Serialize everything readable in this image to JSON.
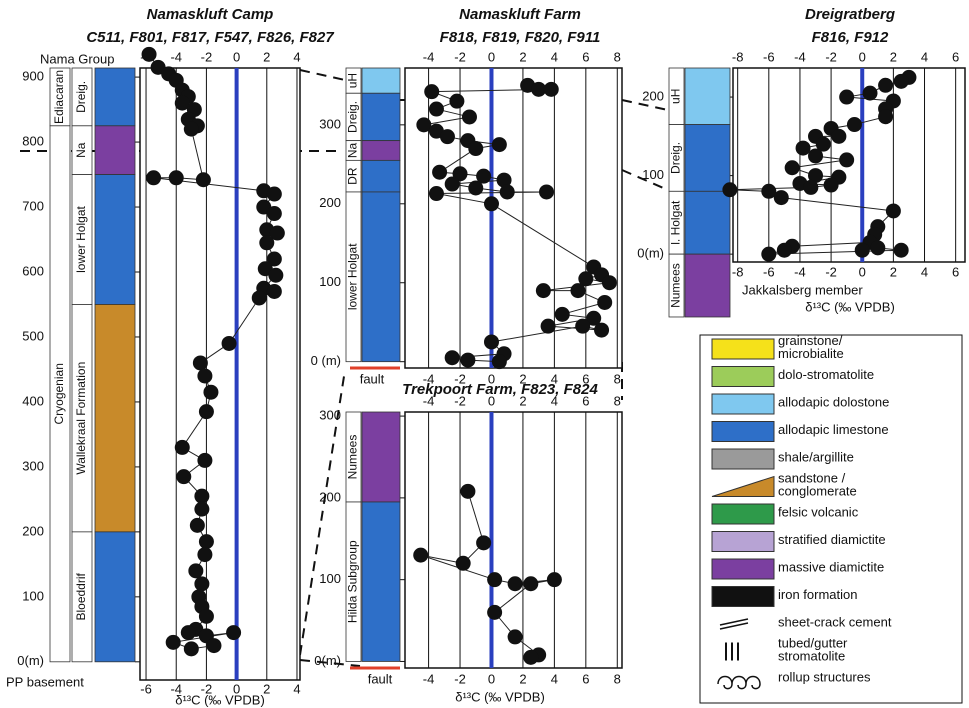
{
  "chart_data": [
    {
      "type": "scatter",
      "title": "Namaskluft Camp",
      "subtitle": "C511, F801, F817, F547, F826, F827",
      "xlabel": "δ¹³C (‰ VPDB)",
      "connected": true,
      "grid": true,
      "zero_line": "#2a3fbf",
      "color": "#111111",
      "xlim": [
        -6.4,
        4.2
      ],
      "xticks": [
        -6,
        -4,
        -2,
        0,
        2,
        4
      ],
      "ylim": [
        -28,
        914
      ],
      "yticks": [
        {
          "value": 0,
          "label": "0(m)"
        },
        100,
        200,
        300,
        400,
        500,
        600,
        700,
        800,
        900
      ],
      "x": [
        -5.8,
        -5.2,
        -4.5,
        -4.0,
        -3.6,
        -3.2,
        -3.6,
        -2.8,
        -3.2,
        -2.6,
        -3.0,
        -2.2,
        -4.0,
        -5.5,
        1.8,
        2.5,
        1.8,
        2.5,
        2.0,
        2.7,
        2.0,
        2.5,
        1.9,
        2.6,
        1.8,
        2.5,
        1.5,
        -0.5,
        -2.4,
        -2.1,
        -1.7,
        -2.0,
        -3.6,
        -2.1,
        -3.5,
        -2.3,
        -2.3,
        -2.6,
        -2.0,
        -2.1,
        -2.7,
        -2.3,
        -2.5,
        -2.3,
        -2.0,
        -2.7,
        -3.2,
        -2.0,
        -0.2,
        -4.2,
        -3.0,
        -1.5
      ],
      "values": [
        935,
        915,
        905,
        895,
        880,
        870,
        860,
        850,
        835,
        825,
        820,
        742,
        745,
        745,
        725,
        720,
        700,
        690,
        665,
        660,
        645,
        620,
        605,
        595,
        575,
        570,
        560,
        490,
        460,
        440,
        415,
        385,
        330,
        310,
        285,
        255,
        235,
        210,
        185,
        165,
        140,
        120,
        100,
        85,
        70,
        50,
        45,
        40,
        45,
        30,
        20,
        25
      ],
      "periods": [
        {
          "label": "Ediacaran",
          "from": 825,
          "to": 914
        },
        {
          "label": "Cryogenian",
          "from": 0,
          "to": 825
        }
      ],
      "units": [
        {
          "label": "Dreig.",
          "from": 825,
          "to": 914,
          "color": "#2e6fc8"
        },
        {
          "label": "Na",
          "from": 750,
          "to": 825,
          "color": "#7b3fa0"
        },
        {
          "label": "lower Holgat",
          "from": 550,
          "to": 750,
          "color": "#2e6fc8"
        },
        {
          "label": "Wallekraal Formation",
          "from": 200,
          "to": 550,
          "color": "#c88a2a"
        },
        {
          "label": "Bloeddrif",
          "from": 0,
          "to": 200,
          "color": "#2e6fc8"
        }
      ],
      "annotations": [
        "Nama Group",
        "PP basement"
      ]
    },
    {
      "type": "scatter",
      "title": "Namaskluft Farm",
      "subtitle": "F818, F819, F820, F911",
      "connected": true,
      "grid": true,
      "zero_line": "#2a3fbf",
      "color": "#111111",
      "xlim": [
        -5.5,
        8.3
      ],
      "xticks": [
        -4,
        -2,
        0,
        2,
        4,
        6,
        8
      ],
      "ylim": [
        -8,
        372
      ],
      "yticks": [
        {
          "value": 0,
          "label": "0 (m)"
        },
        100,
        200,
        300
      ],
      "x": [
        2.3,
        3.0,
        3.8,
        -3.8,
        -2.2,
        -3.5,
        -1.4,
        -4.3,
        -3.5,
        -2.8,
        -1.5,
        0.5,
        -1.0,
        -3.3,
        -2.0,
        -0.5,
        0.8,
        -2.5,
        -1.0,
        1.0,
        3.5,
        -3.5,
        0.0,
        6.5,
        7.0,
        6.0,
        7.5,
        3.3,
        5.5,
        7.2,
        4.5,
        6.5,
        3.6,
        7.0,
        5.8,
        0.0,
        0.8,
        -2.5,
        -1.5,
        0.5
      ],
      "values": [
        350,
        345,
        345,
        342,
        330,
        320,
        310,
        300,
        292,
        285,
        280,
        275,
        270,
        240,
        238,
        235,
        230,
        225,
        220,
        215,
        215,
        213,
        200,
        120,
        110,
        105,
        100,
        90,
        90,
        75,
        60,
        55,
        45,
        40,
        45,
        25,
        10,
        5,
        2,
        0
      ],
      "units": [
        {
          "label": "uH",
          "from": 340,
          "to": 372,
          "color": "#7fc8ef"
        },
        {
          "label": "Dreig.",
          "from": 280,
          "to": 340,
          "color": "#2e6fc8"
        },
        {
          "label": "Na",
          "from": 255,
          "to": 280,
          "color": "#7b3fa0"
        },
        {
          "label": "DR",
          "from": 215,
          "to": 255,
          "color": "#2e6fc8"
        },
        {
          "label": "lower Holgat",
          "from": 0,
          "to": 215,
          "color": "#2e6fc8"
        }
      ],
      "annotations": [
        "fault"
      ]
    },
    {
      "type": "scatter",
      "title": "Dreigratberg",
      "subtitle": "F816, F912",
      "xlabel": "δ¹³C (‰ VPDB)",
      "connected": true,
      "grid": true,
      "zero_line": "#2a3fbf",
      "color": "#111111",
      "xlim": [
        -8.3,
        6.6
      ],
      "xticks": [
        -8,
        -6,
        -4,
        -2,
        0,
        2,
        4,
        6
      ],
      "ylim": [
        -10,
        237
      ],
      "yticks": [
        {
          "value": 0,
          "label": "0(m)"
        },
        100,
        200
      ],
      "x": [
        3.0,
        2.5,
        1.5,
        0.5,
        -1.0,
        2.0,
        1.5,
        1.5,
        -0.5,
        -2.0,
        -1.5,
        -3.0,
        -2.5,
        -3.8,
        -3.0,
        -1.0,
        -4.5,
        -3.0,
        -1.5,
        -4.0,
        -2.0,
        -3.3,
        -8.5,
        -6.0,
        -5.2,
        2.0,
        1.0,
        0.8,
        0.5,
        -4.5,
        -5.0,
        -6.0,
        2.5,
        1.0,
        0.0
      ],
      "values": [
        225,
        220,
        215,
        205,
        200,
        195,
        185,
        175,
        165,
        160,
        150,
        150,
        140,
        135,
        125,
        120,
        110,
        100,
        98,
        90,
        88,
        85,
        82,
        80,
        72,
        55,
        35,
        25,
        15,
        10,
        5,
        0,
        5,
        8,
        5
      ],
      "units": [
        {
          "label": "uH",
          "from": 165,
          "to": 237,
          "color": "#7fc8ef"
        },
        {
          "label": "Dreig.",
          "from": 80,
          "to": 165,
          "color": "#2e6fc8"
        },
        {
          "label": "l. Holgat",
          "from": 0,
          "to": 80,
          "color": "#2e6fc8"
        },
        {
          "label": "Numees",
          "from": -80,
          "to": 0,
          "color": "#7b3fa0"
        }
      ],
      "annotations": [
        "Jakkalsberg member"
      ]
    },
    {
      "type": "scatter",
      "title": "Trekpoort Farm, F823, F824",
      "xlabel": "δ¹³C (‰ VPDB)",
      "connected": true,
      "grid": true,
      "zero_line": "#2a3fbf",
      "color": "#111111",
      "xlim": [
        -5.5,
        8.3
      ],
      "xticks": [
        -4,
        -2,
        0,
        2,
        4,
        6,
        8
      ],
      "ylim": [
        -8,
        305
      ],
      "yticks": [
        {
          "value": 0,
          "label": "0(m)"
        },
        100,
        200,
        300
      ],
      "x": [
        -1.5,
        -0.5,
        -1.8,
        -4.5,
        0.2,
        1.5,
        4.0,
        2.5,
        0.2,
        1.5,
        3.0,
        2.5
      ],
      "values": [
        208,
        145,
        120,
        130,
        100,
        95,
        100,
        95,
        60,
        30,
        8,
        5
      ],
      "units": [
        {
          "label": "Numees",
          "from": 195,
          "to": 305,
          "color": "#7b3fa0"
        },
        {
          "label": "Hilda Subgroup",
          "from": 0,
          "to": 195,
          "color": "#2e6fc8"
        }
      ],
      "annotations": [
        "fault"
      ]
    }
  ],
  "legend": [
    {
      "lines": [
        "grainstone/",
        "microbialite"
      ],
      "color": "#f5e11a",
      "symbol": "box"
    },
    {
      "lines": [
        "dolo-stromatolite"
      ],
      "color": "#9ccc5a",
      "symbol": "box"
    },
    {
      "lines": [
        "allodapic dolostone"
      ],
      "color": "#7fc8ef",
      "symbol": "box"
    },
    {
      "lines": [
        "allodapic limestone"
      ],
      "color": "#2e6fc8",
      "symbol": "box"
    },
    {
      "lines": [
        "shale/argillite"
      ],
      "color": "#9a9a9a",
      "symbol": "box"
    },
    {
      "lines": [
        "sandstone /",
        "conglomerate"
      ],
      "color": "#c88a2a",
      "symbol": "wedge"
    },
    {
      "lines": [
        "felsic volcanic"
      ],
      "color": "#2e9a4a",
      "symbol": "box"
    },
    {
      "lines": [
        "stratified diamictite"
      ],
      "color": "#b7a3d4",
      "symbol": "box"
    },
    {
      "lines": [
        "massive diamictite"
      ],
      "color": "#7b3fa0",
      "symbol": "box"
    },
    {
      "lines": [
        "iron formation"
      ],
      "color": "#111111",
      "symbol": "box"
    },
    {
      "lines": [
        "sheet-crack cement"
      ],
      "color": "#111111",
      "symbol": "crack"
    },
    {
      "lines": [
        "tubed/gutter",
        "stromatolite"
      ],
      "color": "#111111",
      "symbol": "tube"
    },
    {
      "lines": [
        "rollup structures"
      ],
      "color": "#111111",
      "symbol": "rollup"
    }
  ]
}
